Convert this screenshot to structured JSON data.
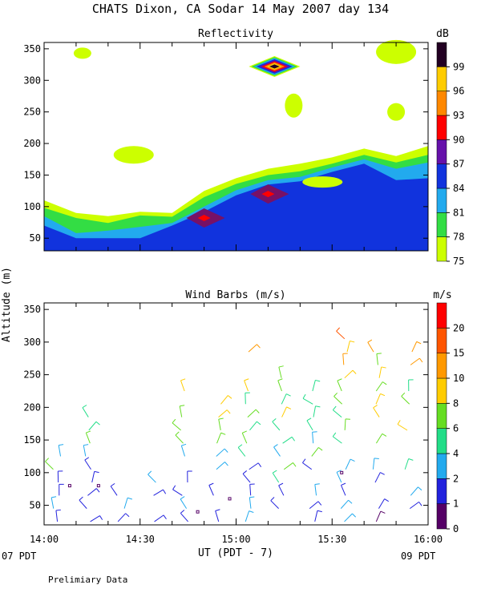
{
  "page": {
    "title": "CHATS Dixon, CA  Sodar  14 May 2007  day 134",
    "shared_ylabel": "Altitude (m)",
    "xlabel": "UT  (PDT - 7)",
    "x_left_note": "07 PDT",
    "x_right_note": "09 PDT",
    "footer": "Prelimiary Data"
  },
  "chart_data": [
    {
      "type": "heatmap",
      "title": "Reflectivity",
      "unit_label": "dB",
      "x_ticks": [
        "14:00",
        "14:30",
        "15:00",
        "15:30",
        "16:00"
      ],
      "x_range_minutes_after_1400": [
        0,
        120
      ],
      "y_ticks": [
        50,
        100,
        150,
        200,
        250,
        300,
        350
      ],
      "ylim": [
        30,
        360
      ],
      "colorbar": {
        "levels": [
          75,
          78,
          81,
          84,
          87,
          90,
          93,
          96,
          99
        ],
        "colors": [
          "#ccff00",
          "#33dd44",
          "#22aaee",
          "#1133dd",
          "#6611aa",
          "#ff0000",
          "#ff8800",
          "#ffcc00",
          "#220022"
        ]
      },
      "contour_levels_db": [
        75,
        78,
        81,
        84,
        87,
        90
      ],
      "contour_colors": [
        "#ccff00",
        "#33dd44",
        "#22aaee",
        "#1133dd",
        "#771166",
        "#ff0000"
      ],
      "time_min": [
        0,
        10,
        20,
        30,
        40,
        50,
        60,
        70,
        80,
        90,
        100,
        110,
        120
      ],
      "profiles": {
        "top_75_m": [
          110,
          90,
          85,
          92,
          90,
          125,
          145,
          160,
          168,
          178,
          192,
          180,
          196
        ],
        "top_78_m": [
          98,
          82,
          74,
          86,
          84,
          115,
          136,
          150,
          156,
          168,
          182,
          170,
          182
        ],
        "top_81_m": [
          85,
          58,
          62,
          68,
          74,
          100,
          126,
          142,
          147,
          162,
          175,
          160,
          170
        ],
        "top_84_m": [
          70,
          50,
          50,
          50,
          70,
          92,
          118,
          135,
          140,
          155,
          168,
          142,
          145
        ]
      },
      "cores_87_db": [
        {
          "t_min": 50,
          "alt_m": 82
        },
        {
          "t_min": 70,
          "alt_m": 120
        }
      ],
      "islands_75_db_alt_m": [
        {
          "t_min": 12,
          "alt_m": 343
        },
        {
          "t_min": 28,
          "alt_m": 182
        },
        {
          "t_min": 78,
          "alt_m": 260
        },
        {
          "t_min": 87,
          "alt_m": 139
        },
        {
          "t_min": 110,
          "alt_m": 250
        },
        {
          "t_min": 110,
          "alt_m": 345
        }
      ],
      "strong_spot": {
        "t_min": 72,
        "alt_m": 322,
        "center_db": 99
      }
    },
    {
      "type": "scatter",
      "subtype": "wind-barbs",
      "title": "Wind Barbs (m/s)",
      "unit_label": "m/s",
      "x_ticks": [
        "14:00",
        "14:30",
        "15:00",
        "15:30",
        "16:00"
      ],
      "x_range_minutes_after_1400": [
        0,
        120
      ],
      "y_ticks": [
        50,
        100,
        150,
        200,
        250,
        300,
        350
      ],
      "ylim": [
        20,
        360
      ],
      "colorbar": {
        "levels": [
          0,
          1,
          2,
          4,
          6,
          8,
          10,
          15,
          20
        ],
        "colors": [
          "#550066",
          "#2222dd",
          "#22aaee",
          "#22dd88",
          "#66dd22",
          "#ffcc00",
          "#ff9900",
          "#ff5500",
          "#ff0000"
        ]
      },
      "columns_t_min": [
        4,
        14,
        24,
        34,
        44,
        54,
        64,
        74,
        84,
        94,
        104,
        114,
        124
      ],
      "column_tops_alt_m": [
        130,
        195,
        80,
        90,
        240,
        210,
        300,
        250,
        280,
        320,
        290,
        320,
        310
      ],
      "gate_spacing_m": 20,
      "gate_start_m": 25
    }
  ]
}
